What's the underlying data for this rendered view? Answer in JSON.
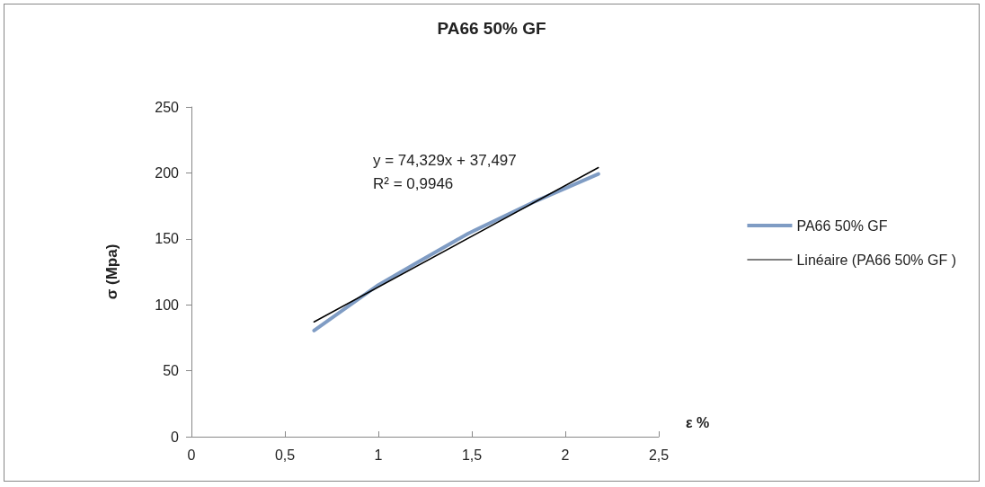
{
  "chart_data": {
    "type": "line",
    "title": "PA66 50% GF",
    "xlabel": "ε %",
    "ylabel": "σ (Mpa)",
    "annotations": [
      "y = 74,329x + 37,497",
      "R² = 0,9946"
    ],
    "series": [
      {
        "name": "PA66 50% GF",
        "color": "#7f9cc4",
        "x": [
          0.656,
          0.8,
          1.0,
          1.22,
          1.48,
          1.825,
          2.177
        ],
        "values": [
          80.5,
          95,
          115,
          133,
          154,
          177.5,
          199.2
        ]
      },
      {
        "name": "Linéaire (PA66 50% GF )",
        "color": "#000000",
        "x": [
          0.656,
          2.177
        ],
        "values": [
          87,
          204
        ]
      }
    ],
    "xlim": [
      0,
      2.5
    ],
    "xticks": [
      0,
      {
        "value": 0.5,
        "label": "0,5"
      },
      1,
      {
        "value": 1.5,
        "label": "1,5"
      },
      2,
      {
        "value": 2.5,
        "label": "2,5"
      }
    ],
    "ylim": [
      0,
      250
    ],
    "yticks": [
      0,
      50,
      100,
      150,
      200,
      250
    ],
    "grid": false,
    "legend": "right",
    "marker": "none",
    "line_style": "solid"
  }
}
